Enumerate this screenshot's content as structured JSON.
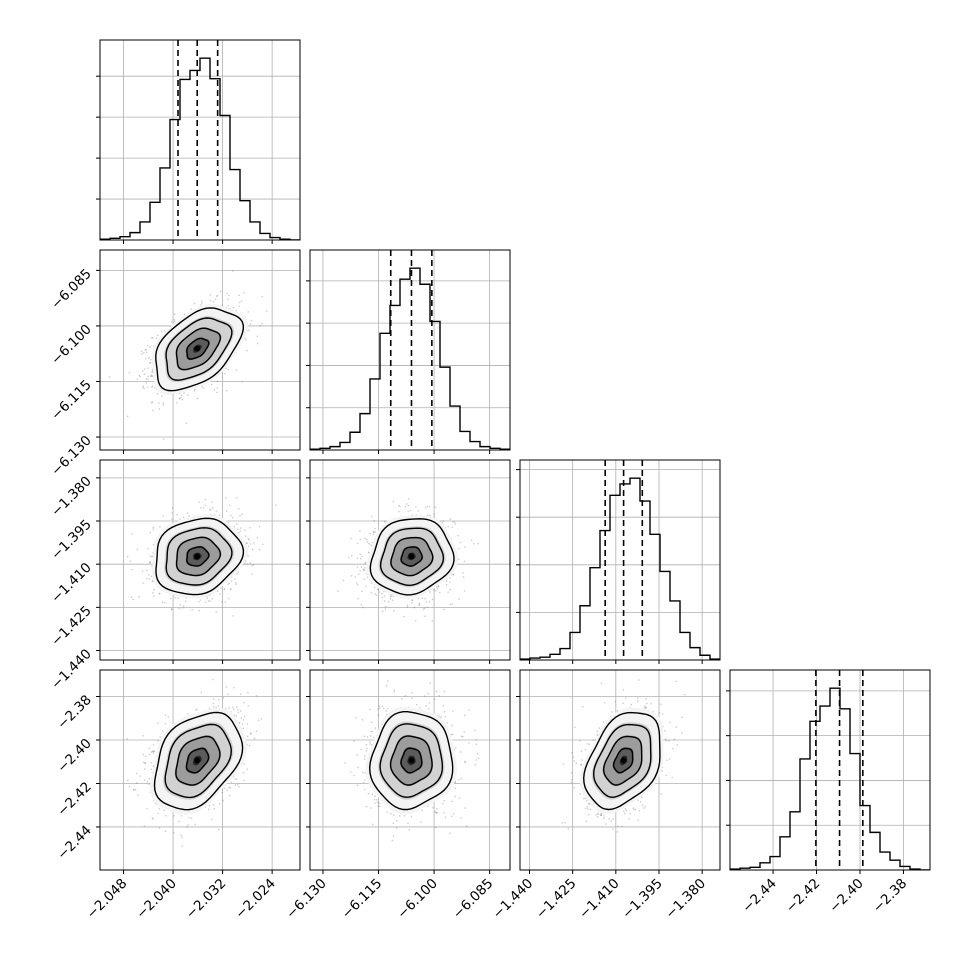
{
  "colors": {
    "background": "#ffffff",
    "line": "#000000",
    "grid": "#b0b0b0",
    "scatter": "#6e6e6e"
  },
  "chart_data": {
    "type": "corner",
    "parameters": [
      {
        "mean": -2.0361,
        "sd": 0.0035,
        "range": [
          -2.0518,
          -2.0195
        ],
        "ticks": [
          -2.048,
          -2.04,
          -2.032,
          -2.024
        ],
        "tick_labels": [
          "−2.048",
          "−2.040",
          "−2.032",
          "−2.024"
        ],
        "quantiles": [
          -2.0392,
          -2.0361,
          -2.0328
        ],
        "hist_counts": [
          1,
          2,
          4,
          9,
          22,
          46,
          88,
          147,
          196,
          207,
          222,
          197,
          152,
          86,
          48,
          22,
          8,
          3,
          1,
          0
        ]
      },
      {
        "mean": -6.1061,
        "sd": 0.0055,
        "range": [
          -6.1335,
          -6.0795
        ],
        "ticks": [
          -6.13,
          -6.115,
          -6.1,
          -6.085
        ],
        "tick_labels": [
          "−6.130",
          "−6.115",
          "−6.100",
          "−6.085"
        ],
        "quantiles": [
          -6.1117,
          -6.1061,
          -6.1006
        ],
        "hist_counts": [
          1,
          2,
          4,
          9,
          21,
          43,
          84,
          138,
          171,
          202,
          215,
          196,
          152,
          98,
          52,
          22,
          10,
          4,
          2,
          1
        ]
      },
      {
        "mean": -1.4073,
        "sd": 0.0066,
        "range": [
          -1.4433,
          -1.3738
        ],
        "ticks": [
          -1.44,
          -1.425,
          -1.41,
          -1.395,
          -1.38
        ],
        "tick_labels": [
          "−1.440",
          "−1.425",
          "−1.410",
          "−1.395",
          "−1.380"
        ],
        "quantiles": [
          -1.4137,
          -1.4073,
          -1.4008
        ],
        "hist_counts": [
          1,
          2,
          3,
          6,
          12,
          29,
          57,
          97,
          136,
          173,
          185,
          191,
          167,
          132,
          93,
          62,
          29,
          13,
          5,
          1
        ]
      },
      {
        "mean": -2.4094,
        "sd": 0.0111,
        "range": [
          -2.4598,
          -2.3678
        ],
        "ticks": [
          -2.44,
          -2.42,
          -2.4,
          -2.38
        ],
        "tick_labels": [
          "−2.44",
          "−2.42",
          "−2.40",
          "−2.38"
        ],
        "quantiles": [
          -2.4203,
          -2.4094,
          -2.3987
        ],
        "hist_counts": [
          1,
          2,
          3,
          8,
          15,
          37,
          65,
          124,
          166,
          183,
          203,
          180,
          130,
          72,
          42,
          20,
          11,
          4,
          1,
          0
        ]
      }
    ],
    "correlations": [
      [
        1.0,
        0.45,
        0.15,
        0.35
      ],
      [
        0.45,
        1.0,
        0.1,
        0.05
      ],
      [
        0.15,
        0.1,
        1.0,
        0.35
      ],
      [
        0.35,
        0.05,
        0.35,
        1.0
      ]
    ],
    "contour_sigmas": [
      0.5,
      1.0,
      1.5,
      2.0
    ],
    "grid": true
  }
}
